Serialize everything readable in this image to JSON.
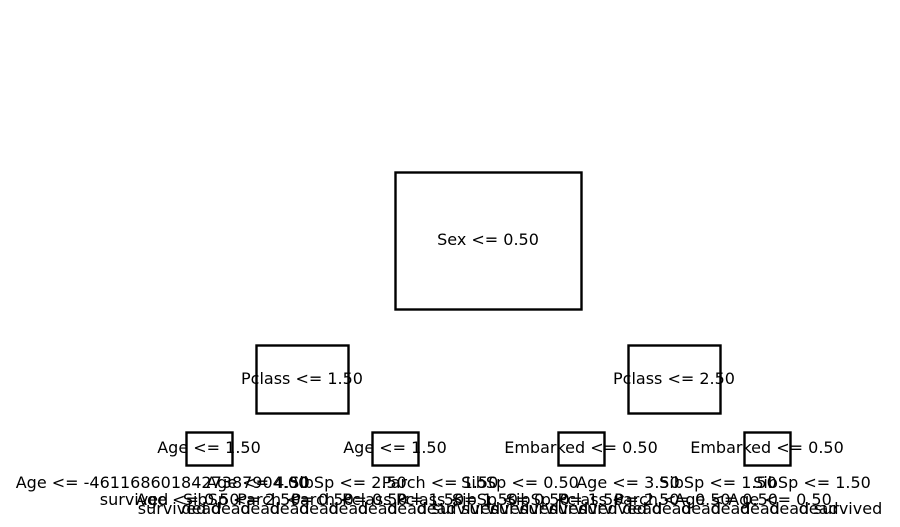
{
  "tree": {
    "root": {
      "label": "Sex <= 0.50"
    },
    "level1": [
      {
        "label": "Pclass <= 1.50"
      },
      {
        "label": "Pclass <= 2.50"
      }
    ],
    "level2": [
      {
        "label": "Age <= 1.50"
      },
      {
        "label": "Age <= 1.50"
      },
      {
        "label": "Embarked <= 0.50"
      },
      {
        "label": "Embarked <= 0.50"
      }
    ],
    "level3_left": "Age <= -4611686018427387904.00",
    "level3_mid": [
      {
        "label": "Age <= 4.50"
      },
      {
        "label": "SibSp <= 2.50"
      },
      {
        "label": "Parch <= 1.50"
      },
      {
        "label": "SibSp <= 0.50"
      },
      {
        "label": "Age <= 3.50"
      },
      {
        "label": "SibSp <= 1.50"
      },
      {
        "label": "SibSp <= 1.50"
      }
    ],
    "level4_labels": [
      "survived",
      "Age <= 0.50",
      "SibSp <= 2.50",
      "Parch <= 0.50",
      "Parch <= 0.50",
      "Pclass <= 1.50",
      "Pclass <= 1.50",
      "SibSp <= 0.50",
      "SibSp <= 1.50",
      "Pclass <= 2.50",
      "Parch <= 0.50",
      "Age <= 0.50",
      "Age <= 0.50"
    ],
    "level5_labels": [
      "survived",
      "dead",
      "dead",
      "dead",
      "dead",
      "dead",
      "dead",
      "dead",
      "dead",
      "dead",
      "survived",
      "survived",
      "survived",
      "survived",
      "survived",
      "survived",
      "dead",
      "dead",
      "dead",
      "dead",
      "dead",
      "dead",
      "dead",
      "survived"
    ]
  }
}
